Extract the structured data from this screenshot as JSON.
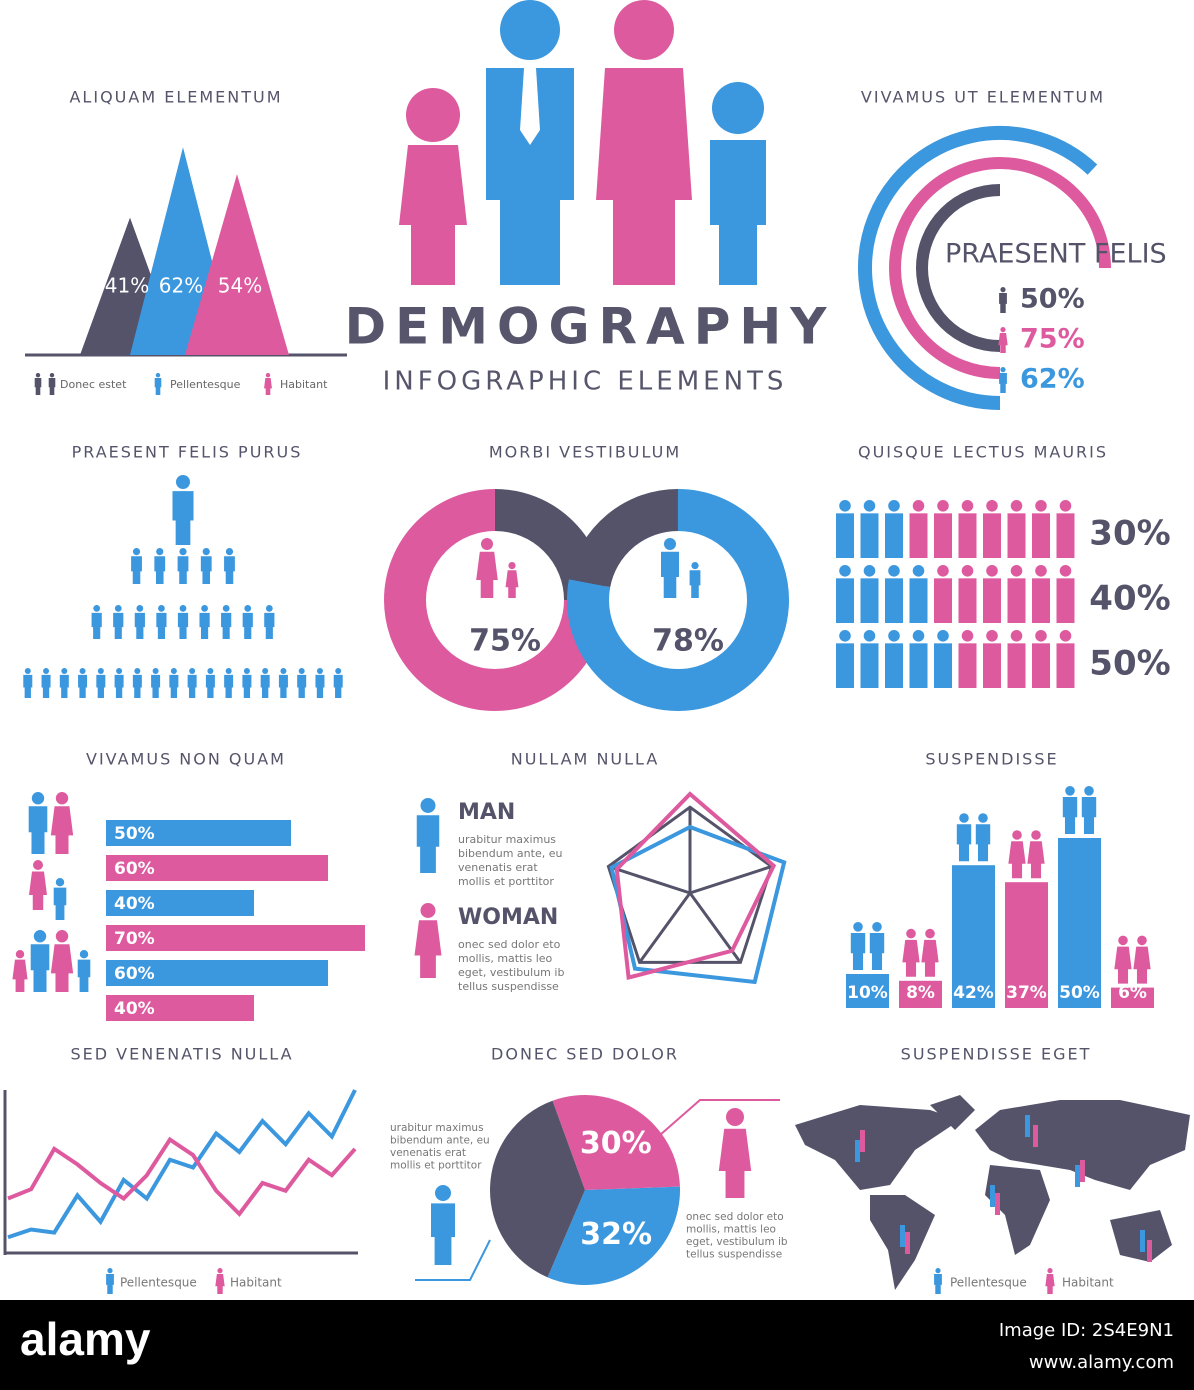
{
  "header": {
    "title": "DEMOGRAPHY",
    "subtitle": "INFOGRAPHIC ELEMENTS"
  },
  "chart_data": [
    {
      "type": "triangle",
      "title": "ALIQUAM ELEMENTUM",
      "categories": [
        "Donec estet",
        "Pellentesque",
        "Habitant"
      ],
      "values": [
        41,
        62,
        54
      ],
      "value_labels": [
        "41%",
        "62%",
        "54%"
      ],
      "colors": [
        "#54536a",
        "#3b97de",
        "#de5a9f"
      ]
    },
    {
      "type": "radial",
      "title": "VIVAMUS UT ELEMENTUM",
      "label": "PRAESENT FELIS",
      "values": [
        50,
        75,
        62
      ],
      "value_labels": [
        "50%",
        "75%",
        "62%"
      ],
      "colors": [
        "#54536a",
        "#de5a9f",
        "#3b97de"
      ]
    },
    {
      "type": "pyramid",
      "title": "PRAESENT FELIS PURUS"
    },
    {
      "type": "donut",
      "title": "MORBI VESTIBULUM",
      "values": [
        75,
        78
      ],
      "value_labels": [
        "75%",
        "78%"
      ],
      "colors": [
        "#de5a9f",
        "#3b97de"
      ],
      "rest_color": "#54536a"
    },
    {
      "type": "icon_rows",
      "title": "QUISQUE LECTUS MAURIS",
      "values": [
        30,
        40,
        50
      ],
      "value_labels": [
        "30%",
        "40%",
        "50%"
      ],
      "colors": [
        "#3b97de",
        "#de5a9f"
      ]
    },
    {
      "type": "hbar",
      "title": "VIVAMUS NON QUAM",
      "values": [
        50,
        60,
        40,
        70,
        60,
        40
      ],
      "value_labels": [
        "50%",
        "60%",
        "40%",
        "70%",
        "60%",
        "40%"
      ],
      "colors": [
        "#3b97de",
        "#de5a9f",
        "#3b97de",
        "#de5a9f",
        "#3b97de",
        "#de5a9f"
      ]
    },
    {
      "type": "radar",
      "title": "NULLAM NULLA",
      "series": [
        {
          "name": "MAN",
          "color": "#3b97de",
          "text": [
            "urabitur maximus",
            "bibendum ante, eu",
            "venenatis erat",
            "mollis et porttitor"
          ],
          "values": [
            60,
            90,
            100,
            85,
            75
          ]
        },
        {
          "name": "WOMAN",
          "color": "#de5a9f",
          "text": [
            "onec sed dolor eto",
            "mollis, mattis leo",
            "eget, vestibulum ib",
            "tellus suspendisse"
          ],
          "values": [
            90,
            80,
            65,
            95,
            70
          ]
        }
      ]
    },
    {
      "type": "vbar",
      "title": "SUSPENDISSE",
      "values": [
        10,
        8,
        42,
        37,
        50,
        6
      ],
      "value_labels": [
        "10%",
        "8%",
        "42%",
        "37%",
        "50%",
        "6%"
      ],
      "colors": [
        "#3b97de",
        "#de5a9f",
        "#3b97de",
        "#de5a9f",
        "#3b97de",
        "#de5a9f"
      ]
    },
    {
      "type": "line",
      "title": "SED VENENATIS NULLA",
      "series": [
        {
          "name": "Pellentesque",
          "color": "#3b97de",
          "values": [
            5,
            10,
            8,
            32,
            15,
            42,
            30,
            55,
            50,
            72,
            60,
            80,
            65,
            85,
            70,
            100
          ]
        },
        {
          "name": "Habitant",
          "color": "#de5a9f",
          "values": [
            30,
            36,
            62,
            52,
            40,
            30,
            45,
            68,
            58,
            35,
            20,
            40,
            35,
            55,
            45,
            62
          ]
        }
      ]
    },
    {
      "type": "pie",
      "title": "DONEC SED DOLOR",
      "values": [
        30,
        32,
        38
      ],
      "value_labels": [
        "30%",
        "32%",
        null
      ],
      "colors": [
        "#de5a9f",
        "#3b97de",
        "#54536a"
      ],
      "text_left": [
        "urabitur maximus",
        "bibendum ante, eu",
        "venenatis erat",
        "mollis et porttitor"
      ],
      "text_right": [
        "onec sed dolor eto",
        "mollis, mattis leo",
        "eget, vestibulum ib",
        "tellus suspendisse"
      ]
    },
    {
      "type": "map",
      "title": "SUSPENDISSE EGET",
      "categories": [
        "Pellentesque",
        "Habitant"
      ],
      "colors": [
        "#3b97de",
        "#de5a9f"
      ]
    }
  ],
  "footer": {
    "brand": "alamy",
    "image_id": "Image ID: 2S4E9N1",
    "url": "www.alamy.com"
  }
}
